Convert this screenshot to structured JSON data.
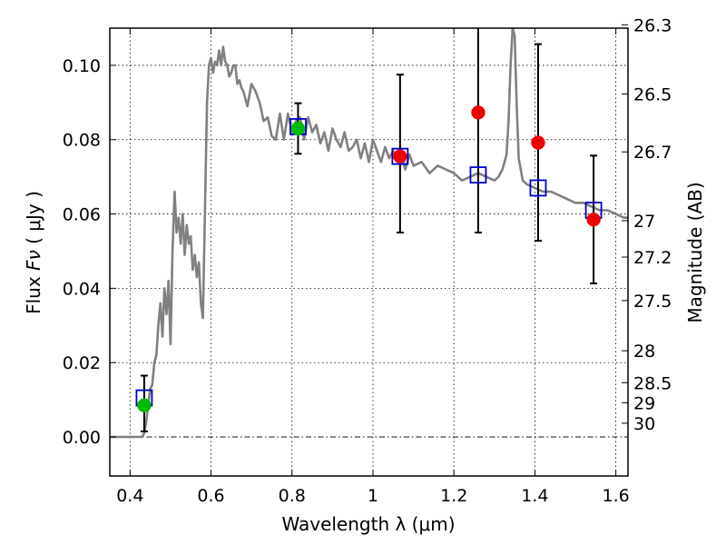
{
  "chart_data": {
    "type": "scatter",
    "xlabel": "Wavelength  λ (μm)",
    "ylabel_prefix": "Flux  ",
    "ylabel_symbol": "Fν",
    "ylabel_unit": " ( μJy )",
    "y2label": "Magnitude (AB)",
    "xlim": [
      0.35,
      1.63
    ],
    "ylim": [
      -0.0105,
      0.11
    ],
    "grid": true,
    "x_ticks": [
      0.4,
      0.6,
      0.8,
      1.0,
      1.2,
      1.4,
      1.6
    ],
    "x_tick_labels": [
      "0.4",
      "0.6",
      "0.8",
      "1",
      "1.2",
      "1.4",
      "1.6"
    ],
    "y_ticks": [
      0.0,
      0.02,
      0.04,
      0.06,
      0.08,
      0.1
    ],
    "y_tick_labels": [
      "0.00",
      "0.02",
      "0.04",
      "0.06",
      "0.08",
      "0.10"
    ],
    "mag_ticks": [
      {
        "label": "26.3",
        "flux": 0.1109
      },
      {
        "label": "26.5",
        "flux": 0.0923
      },
      {
        "label": "26.7",
        "flux": 0.0767
      },
      {
        "label": "27",
        "flux": 0.0582
      },
      {
        "label": "27.2",
        "flux": 0.0484
      },
      {
        "label": "27.5",
        "flux": 0.0367
      },
      {
        "label": "28",
        "flux": 0.0232
      },
      {
        "label": "28.5",
        "flux": 0.0146
      },
      {
        "label": "29",
        "flux": 0.0092
      },
      {
        "label": "30",
        "flux": 0.0037
      }
    ],
    "model_spectrum": {
      "color": "#808080",
      "x": [
        0.35,
        0.43,
        0.435,
        0.44,
        0.445,
        0.45,
        0.455,
        0.46,
        0.465,
        0.47,
        0.475,
        0.48,
        0.485,
        0.49,
        0.495,
        0.5,
        0.505,
        0.51,
        0.515,
        0.52,
        0.525,
        0.53,
        0.535,
        0.54,
        0.545,
        0.55,
        0.555,
        0.56,
        0.565,
        0.57,
        0.575,
        0.58,
        0.585,
        0.59,
        0.595,
        0.6,
        0.605,
        0.61,
        0.615,
        0.62,
        0.625,
        0.63,
        0.635,
        0.64,
        0.645,
        0.65,
        0.655,
        0.66,
        0.665,
        0.67,
        0.675,
        0.68,
        0.69,
        0.7,
        0.71,
        0.72,
        0.73,
        0.74,
        0.75,
        0.76,
        0.77,
        0.78,
        0.79,
        0.8,
        0.81,
        0.82,
        0.83,
        0.84,
        0.85,
        0.86,
        0.87,
        0.88,
        0.89,
        0.9,
        0.91,
        0.92,
        0.93,
        0.94,
        0.95,
        0.96,
        0.97,
        0.98,
        0.99,
        1.0,
        1.01,
        1.02,
        1.03,
        1.04,
        1.05,
        1.06,
        1.07,
        1.08,
        1.09,
        1.1,
        1.12,
        1.14,
        1.16,
        1.18,
        1.2,
        1.22,
        1.24,
        1.26,
        1.28,
        1.3,
        1.31,
        1.32,
        1.33,
        1.335,
        1.34,
        1.345,
        1.35,
        1.355,
        1.36,
        1.37,
        1.38,
        1.4,
        1.42,
        1.44,
        1.46,
        1.48,
        1.5,
        1.52,
        1.54,
        1.56,
        1.58,
        1.6,
        1.62,
        1.63
      ],
      "y": [
        0.0,
        0.0,
        0.001,
        0.004,
        0.009,
        0.013,
        0.014,
        0.02,
        0.022,
        0.03,
        0.036,
        0.027,
        0.04,
        0.033,
        0.042,
        0.025,
        0.05,
        0.066,
        0.055,
        0.059,
        0.052,
        0.06,
        0.049,
        0.057,
        0.052,
        0.054,
        0.045,
        0.049,
        0.043,
        0.047,
        0.036,
        0.032,
        0.06,
        0.09,
        0.1,
        0.102,
        0.098,
        0.101,
        0.1,
        0.104,
        0.1,
        0.105,
        0.101,
        0.1,
        0.097,
        0.098,
        0.1,
        0.1,
        0.095,
        0.096,
        0.094,
        0.093,
        0.089,
        0.095,
        0.093,
        0.09,
        0.085,
        0.086,
        0.081,
        0.08,
        0.087,
        0.08,
        0.087,
        0.082,
        0.085,
        0.086,
        0.08,
        0.086,
        0.082,
        0.084,
        0.079,
        0.082,
        0.077,
        0.083,
        0.08,
        0.078,
        0.082,
        0.077,
        0.078,
        0.08,
        0.075,
        0.079,
        0.074,
        0.08,
        0.077,
        0.074,
        0.078,
        0.075,
        0.077,
        0.074,
        0.076,
        0.072,
        0.076,
        0.073,
        0.074,
        0.071,
        0.073,
        0.072,
        0.071,
        0.069,
        0.07,
        0.071,
        0.07,
        0.069,
        0.07,
        0.072,
        0.076,
        0.085,
        0.1,
        0.11,
        0.108,
        0.09,
        0.075,
        0.069,
        0.068,
        0.067,
        0.066,
        0.066,
        0.065,
        0.064,
        0.063,
        0.063,
        0.062,
        0.061,
        0.061,
        0.06,
        0.059,
        0.059
      ]
    },
    "series": [
      {
        "marker": "open-square",
        "color": "#0000cc",
        "points": [
          {
            "x": 0.435,
            "y": 0.0105
          },
          {
            "x": 0.815,
            "y": 0.0835
          },
          {
            "x": 1.067,
            "y": 0.0755
          },
          {
            "x": 1.26,
            "y": 0.0705
          },
          {
            "x": 1.408,
            "y": 0.067
          },
          {
            "x": 1.545,
            "y": 0.061
          }
        ]
      },
      {
        "marker": "filled-circle",
        "color": "#00bb00",
        "points": [
          {
            "x": 0.435,
            "y": 0.0085,
            "yerr_low": 0.0015,
            "yerr_high": 0.0165
          },
          {
            "x": 0.815,
            "y": 0.083,
            "yerr_low": 0.0762,
            "yerr_high": 0.0898
          }
        ]
      },
      {
        "marker": "filled-circle",
        "color": "#ee0000",
        "points": [
          {
            "x": 1.067,
            "y": 0.0755,
            "yerr_low": 0.055,
            "yerr_high": 0.0975
          },
          {
            "x": 1.26,
            "y": 0.0873,
            "yerr_low": 0.055,
            "yerr_high": 0.111
          },
          {
            "x": 1.408,
            "y": 0.0792,
            "yerr_low": 0.0528,
            "yerr_high": 0.1057
          },
          {
            "x": 1.545,
            "y": 0.0585,
            "yerr_low": 0.0413,
            "yerr_high": 0.0757
          }
        ]
      }
    ]
  }
}
